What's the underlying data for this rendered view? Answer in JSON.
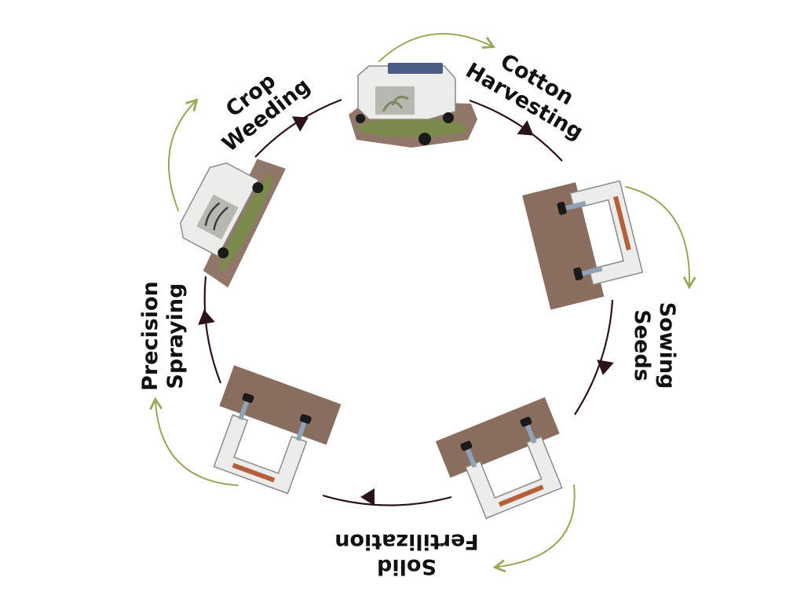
{
  "diagram": {
    "type": "cycle",
    "stages": [
      {
        "id": "cotton-harvesting",
        "lines": [
          "Cotton",
          "Harvesting"
        ]
      },
      {
        "id": "sowing-seeds",
        "lines": [
          "Sowing",
          "Seeds"
        ]
      },
      {
        "id": "solid-fertilization",
        "lines": [
          "Solid",
          "Fertilization"
        ]
      },
      {
        "id": "precision-spraying",
        "lines": [
          "Precision",
          "Spraying"
        ]
      },
      {
        "id": "crop-weeding",
        "lines": [
          "Crop",
          "Weeding"
        ]
      }
    ],
    "colors": {
      "ring": "#2a1418",
      "transition_arrow": "#9aa85a",
      "robot_body": "#ececea",
      "robot_outline": "#8a8a88",
      "soil": "#6b4a38",
      "leaf": "#6f9a3a",
      "stripe": "#b5603a"
    }
  }
}
